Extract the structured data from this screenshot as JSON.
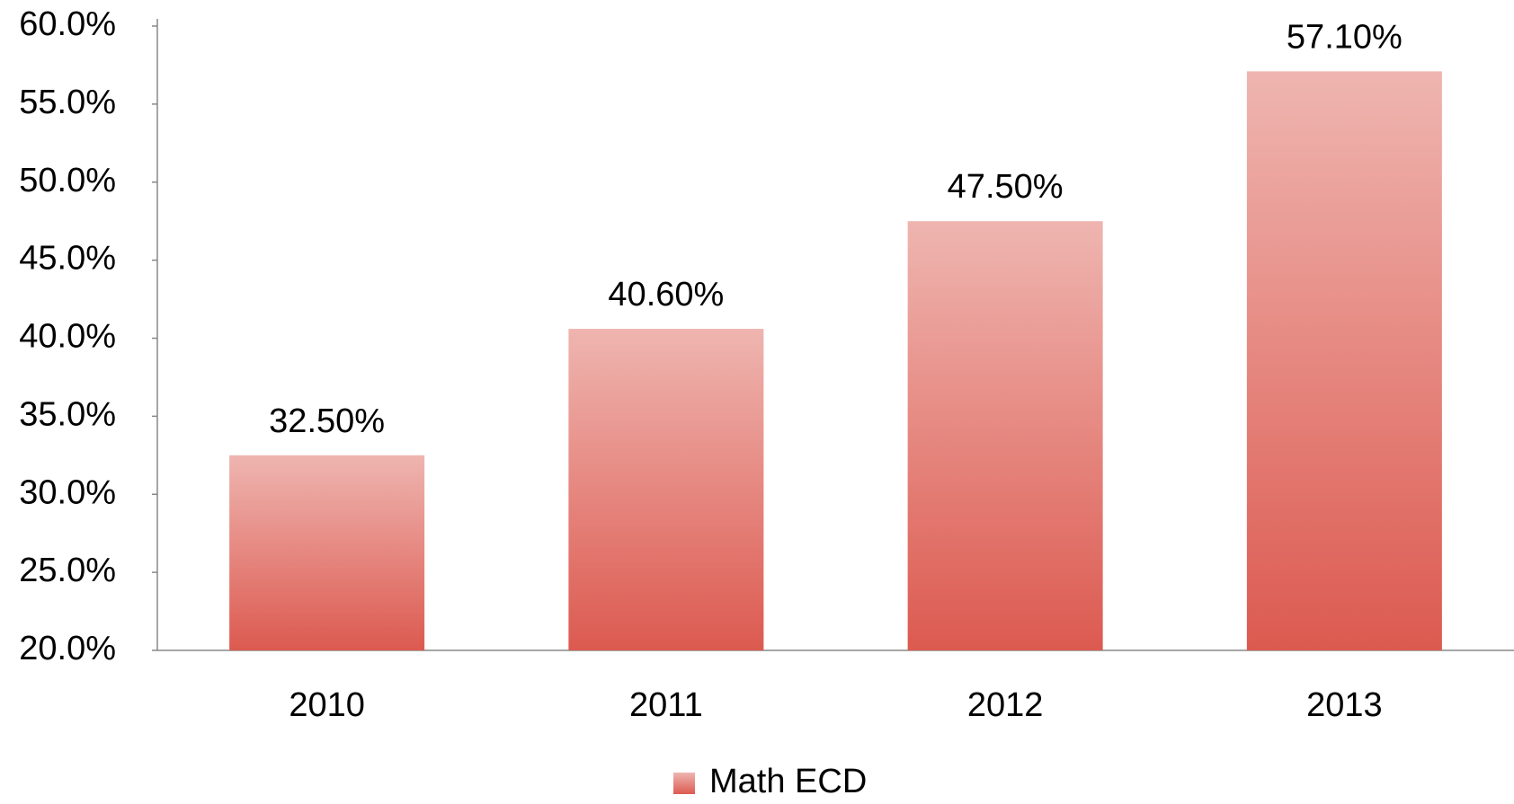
{
  "chart_data": {
    "type": "bar",
    "categories": [
      "2010",
      "2011",
      "2012",
      "2013"
    ],
    "series": [
      {
        "name": "Math ECD",
        "color": "#dc5a50",
        "values": [
          32.5,
          40.6,
          47.5,
          57.1
        ],
        "value_labels": [
          "32.50%",
          "40.60%",
          "47.50%",
          "57.10%"
        ]
      }
    ],
    "ylim": [
      20,
      60
    ],
    "yticks": [
      {
        "value": 20,
        "label": "20.0%"
      },
      {
        "value": 25,
        "label": "25.0%"
      },
      {
        "value": 30,
        "label": "30.0%"
      },
      {
        "value": 35,
        "label": "35.0%"
      },
      {
        "value": 40,
        "label": "40.0%"
      },
      {
        "value": 45,
        "label": "45.0%"
      },
      {
        "value": 50,
        "label": "50.0%"
      },
      {
        "value": 55,
        "label": "55.0%"
      },
      {
        "value": 60,
        "label": "60.0%"
      }
    ],
    "grid": false,
    "legend": "bottom"
  }
}
